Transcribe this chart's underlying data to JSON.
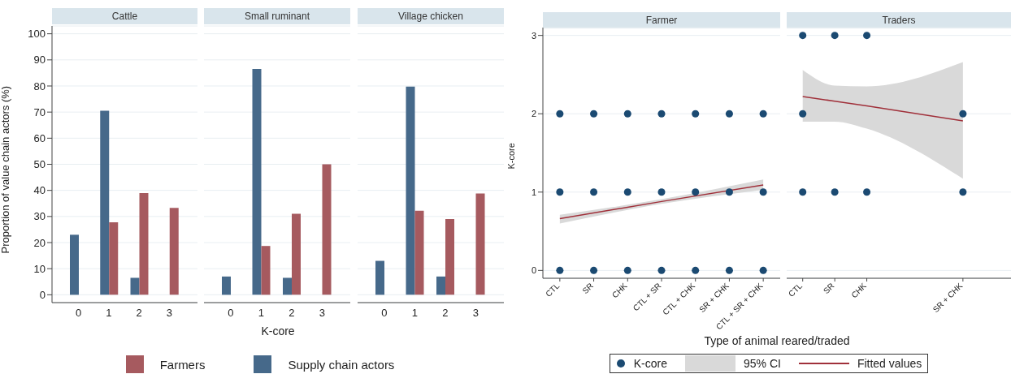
{
  "chart_data": [
    {
      "type": "bar",
      "title": "Cattle",
      "ylabel": "Proportion of value chain actors (%)",
      "categories": [
        "0",
        "1",
        "2",
        "3"
      ],
      "series": [
        {
          "color": "#a65a5f",
          "values": [
            null,
            27.8,
            39,
            33.3
          ]
        },
        {
          "color": "#46698a",
          "values": [
            23,
            70.5,
            6.5,
            null
          ]
        }
      ],
      "ylim": [
        -3,
        103
      ],
      "yticks": [
        0,
        10,
        20,
        30,
        40,
        50,
        60,
        70,
        80,
        90,
        100
      ],
      "grid": "y"
    },
    {
      "type": "bar",
      "title": "Small ruminant",
      "xlabel": "K-core",
      "categories": [
        "0",
        "1",
        "2",
        "3"
      ],
      "series": [
        {
          "name": "Farmers",
          "color": "#a65a5f",
          "values": [
            null,
            18.7,
            31,
            50
          ]
        },
        {
          "name": "Supply chain actors",
          "color": "#46698a",
          "values": [
            7,
            86.5,
            6.5,
            null
          ]
        }
      ],
      "ylim": [
        -3,
        103
      ],
      "yticks": [
        0,
        10,
        20,
        30,
        40,
        50,
        60,
        70,
        80,
        90,
        100
      ],
      "grid": "y",
      "legend": "bottom",
      "tick_labels": "x"
    },
    {
      "type": "bar",
      "title": "Village chicken",
      "categories": [
        "0",
        "1",
        "2",
        "3"
      ],
      "series": [
        {
          "color": "#a65a5f",
          "values": [
            null,
            32.2,
            29,
            38.8
          ]
        },
        {
          "color": "#46698a",
          "values": [
            13,
            79.8,
            7,
            null
          ]
        }
      ],
      "ylim": [
        -3,
        103
      ],
      "yticks": [
        0,
        10,
        20,
        30,
        40,
        50,
        60,
        70,
        80,
        90,
        100
      ],
      "grid": "y",
      "tick_labels": "x"
    },
    {
      "type": "scatter",
      "title": "Farmer",
      "ylabel": "K-core",
      "xlabel": "Type of animal reared/traded",
      "annotations": [
        "95% CI"
      ],
      "categories": [
        "CTL",
        "SR",
        "CHK",
        "CTL + SR",
        "CTL + CHK",
        "SR + CHK",
        "CTL + SR + CHK"
      ],
      "ylim": [
        -0.1,
        3.1
      ],
      "yticks": [
        0,
        1,
        2,
        3
      ],
      "grid": "y",
      "legend": "bottom",
      "series": [
        {
          "name": "K-core",
          "type": "scatter",
          "marker": "circle",
          "color": "#1b4a72",
          "x": [
            "CTL",
            "SR",
            "CHK",
            "CTL + SR",
            "CTL + CHK",
            "SR + CHK",
            "CTL + SR + CHK",
            "CTL",
            "SR",
            "CHK",
            "CTL + SR",
            "CTL + CHK",
            "SR + CHK",
            "CTL + SR + CHK",
            "CTL",
            "SR",
            "CHK",
            "CTL + SR",
            "CTL + CHK",
            "SR + CHK",
            "CTL + SR + CHK"
          ],
          "values": [
            2,
            2,
            2,
            2,
            2,
            2,
            2,
            1,
            1,
            1,
            1,
            1,
            1,
            1,
            0,
            0,
            0,
            0,
            0,
            0,
            0
          ]
        },
        {
          "name": "Fitted values",
          "type": "line",
          "color": "#a0303a",
          "x": [
            "CTL",
            "CTL + SR",
            "CTL + SR + CHK"
          ],
          "values": [
            0.66,
            0.88,
            1.09
          ],
          "lower": [
            0.6,
            0.85,
            1.03
          ],
          "upper": [
            0.71,
            0.91,
            1.16
          ]
        }
      ]
    },
    {
      "type": "scatter",
      "title": "Traders",
      "categories": [
        "CTL",
        "SR",
        "CHK",
        null,
        null,
        "SR + CHK",
        null
      ],
      "ylim": [
        -0.1,
        3.1
      ],
      "yticks": [
        0,
        1,
        2,
        3
      ],
      "grid": "y",
      "tick_labels": "x",
      "series": [
        {
          "type": "scatter",
          "marker": "circle",
          "color": "#1b4a72",
          "x": [
            "CTL",
            "SR",
            "CHK",
            "CTL",
            "SR + CHK",
            "CTL",
            "SR",
            "CHK",
            "SR + CHK"
          ],
          "values": [
            3,
            3,
            3,
            2,
            2,
            1,
            1,
            1,
            1
          ]
        },
        {
          "type": "line",
          "color": "#a0303a",
          "x": [
            "CTL",
            "SR",
            "CHK",
            "SR + CHK"
          ],
          "values": [
            2.22,
            2.16,
            2.1,
            1.91
          ],
          "lower": [
            1.9,
            1.9,
            1.81,
            1.17
          ],
          "upper": [
            2.56,
            2.36,
            2.35,
            2.66
          ]
        }
      ]
    }
  ]
}
